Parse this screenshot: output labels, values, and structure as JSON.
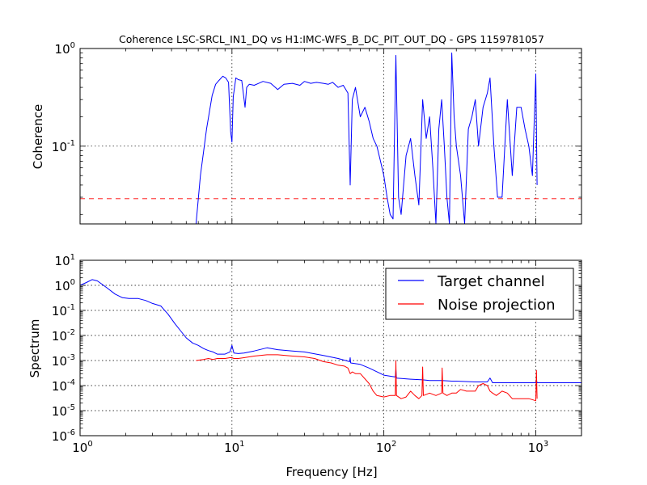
{
  "chart_data": [
    {
      "type": "line",
      "title": "Coherence LSC-SRCL_IN1_DQ vs H1:IMC-WFS_B_DC_PIT_OUT_DQ - GPS 1159781057",
      "ylabel": "Coherence",
      "xscale": "log",
      "yscale": "log",
      "xlim": [
        1,
        2000
      ],
      "ylim": [
        0.016,
        1
      ],
      "grid": true,
      "yticks": [
        {
          "value": 0.1,
          "label": "10",
          "exp": "-1"
        },
        {
          "value": 1,
          "label": "10",
          "exp": "0"
        }
      ],
      "threshold": {
        "value": 0.029,
        "color": "#ff0000"
      },
      "series": [
        {
          "color": "#0000ff",
          "x": [
            5.8,
            6.2,
            6.8,
            7.4,
            7.8,
            8.2,
            8.7,
            9.1,
            9.5,
            9.8,
            10.0,
            10.2,
            10.6,
            11.0,
            11.6,
            12.2,
            12.5,
            13.0,
            14.0,
            15.0,
            16.0,
            18.0,
            20.0,
            22.0,
            25.0,
            28.0,
            30.0,
            33.0,
            36.0,
            40.0,
            43.0,
            46.0,
            50.0,
            54.0,
            58.0,
            60.0,
            62.0,
            65.0,
            70.0,
            75.0,
            80.0,
            85.0,
            90.0,
            95.0,
            100,
            105,
            110,
            115,
            120,
            125,
            130,
            140,
            150,
            160,
            170,
            180,
            190,
            200,
            210,
            220,
            230,
            240,
            250,
            260,
            270,
            280,
            290,
            300,
            320,
            340,
            360,
            380,
            400,
            420,
            450,
            480,
            500,
            530,
            560,
            600,
            650,
            700,
            750,
            800,
            850,
            900,
            950,
            1000,
            1020
          ],
          "y": [
            0.016,
            0.05,
            0.15,
            0.33,
            0.43,
            0.47,
            0.52,
            0.5,
            0.45,
            0.14,
            0.11,
            0.32,
            0.5,
            0.48,
            0.47,
            0.25,
            0.4,
            0.43,
            0.42,
            0.44,
            0.46,
            0.44,
            0.38,
            0.43,
            0.44,
            0.42,
            0.46,
            0.44,
            0.45,
            0.44,
            0.43,
            0.45,
            0.4,
            0.42,
            0.35,
            0.04,
            0.3,
            0.4,
            0.2,
            0.25,
            0.18,
            0.12,
            0.1,
            0.07,
            0.05,
            0.03,
            0.02,
            0.018,
            0.85,
            0.03,
            0.02,
            0.08,
            0.12,
            0.05,
            0.025,
            0.3,
            0.12,
            0.2,
            0.06,
            0.016,
            0.15,
            0.3,
            0.1,
            0.03,
            0.016,
            0.9,
            0.2,
            0.1,
            0.05,
            0.016,
            0.15,
            0.2,
            0.3,
            0.1,
            0.25,
            0.35,
            0.5,
            0.1,
            0.03,
            0.03,
            0.3,
            0.05,
            0.25,
            0.25,
            0.15,
            0.1,
            0.05,
            0.55,
            0.04
          ]
        }
      ]
    },
    {
      "type": "line",
      "xlabel": "Frequency [Hz]",
      "ylabel": "Spectrum",
      "xscale": "log",
      "yscale": "log",
      "xlim": [
        1,
        2000
      ],
      "ylim": [
        1e-06,
        10
      ],
      "grid": true,
      "legend": "top-right",
      "xticks": [
        {
          "value": 1,
          "label": "10",
          "exp": "0"
        },
        {
          "value": 10,
          "label": "10",
          "exp": "1"
        },
        {
          "value": 100,
          "label": "10",
          "exp": "2"
        },
        {
          "value": 1000,
          "label": "10",
          "exp": "3"
        }
      ],
      "yticks": [
        {
          "value": 1e-06,
          "label": "10",
          "exp": "-6"
        },
        {
          "value": 1e-05,
          "label": "10",
          "exp": "-5"
        },
        {
          "value": 0.0001,
          "label": "10",
          "exp": "-4"
        },
        {
          "value": 0.001,
          "label": "10",
          "exp": "-3"
        },
        {
          "value": 0.01,
          "label": "10",
          "exp": "-2"
        },
        {
          "value": 0.1,
          "label": "10",
          "exp": "-1"
        },
        {
          "value": 1,
          "label": "10",
          "exp": "0"
        },
        {
          "value": 10,
          "label": "10",
          "exp": "1"
        }
      ],
      "series": [
        {
          "name": "Target channel",
          "color": "#0000ff",
          "x": [
            1.0,
            1.1,
            1.2,
            1.3,
            1.5,
            1.7,
            1.9,
            2.1,
            2.4,
            2.7,
            3.0,
            3.4,
            3.8,
            4.2,
            4.6,
            5.0,
            5.5,
            6.0,
            6.5,
            7.0,
            7.5,
            8.0,
            9.0,
            9.7,
            10.0,
            10.3,
            11.0,
            12.0,
            14.0,
            17.0,
            20.0,
            25.0,
            30.0,
            40.0,
            50.0,
            59.5,
            60.0,
            60.5,
            70.0,
            80.0,
            100,
            119,
            120,
            121,
            150,
            180,
            200,
            240,
            280,
            300,
            400,
            480,
            500,
            520,
            700,
            1000,
            1010,
            1020,
            2000
          ],
          "y": [
            1.0,
            1.3,
            1.7,
            1.5,
            0.8,
            0.45,
            0.32,
            0.3,
            0.3,
            0.25,
            0.19,
            0.15,
            0.07,
            0.03,
            0.015,
            0.008,
            0.005,
            0.004,
            0.003,
            0.0025,
            0.0022,
            0.0018,
            0.0018,
            0.0022,
            0.004,
            0.002,
            0.0019,
            0.002,
            0.0024,
            0.0032,
            0.0027,
            0.0024,
            0.0022,
            0.0016,
            0.0012,
            0.0009,
            0.0013,
            0.0008,
            0.0007,
            0.0005,
            0.00026,
            0.00022,
            0.00045,
            0.0002,
            0.00018,
            0.00017,
            0.00016,
            0.00016,
            0.00015,
            0.00015,
            0.00014,
            0.00014,
            0.0002,
            0.00013,
            0.00013,
            0.00013,
            0.00017,
            0.00013,
            0.00013
          ]
        },
        {
          "name": "Noise projection",
          "color": "#ff0000",
          "x": [
            5.8,
            6.5,
            7.0,
            7.5,
            8.0,
            9.0,
            9.7,
            10.0,
            10.3,
            11.0,
            12.0,
            14.0,
            17.0,
            20.0,
            25.0,
            30.0,
            35.0,
            40.0,
            45.0,
            50.0,
            55.0,
            58.0,
            60.0,
            62.0,
            65.0,
            70.0,
            80.0,
            85.0,
            90.0,
            100,
            110,
            119,
            120,
            121,
            130,
            140,
            150,
            160,
            170,
            178,
            180,
            182,
            200,
            220,
            240,
            242,
            245,
            260,
            280,
            300,
            320,
            350,
            400,
            420,
            450,
            480,
            500,
            520,
            550,
            600,
            650,
            700,
            800,
            900,
            1000,
            1010,
            1020
          ],
          "y": [
            0.001,
            0.0011,
            0.0012,
            0.0011,
            0.0012,
            0.0012,
            0.0013,
            0.0013,
            0.0012,
            0.0012,
            0.0013,
            0.0015,
            0.0017,
            0.0017,
            0.0015,
            0.0014,
            0.0012,
            0.0009,
            0.0008,
            0.00065,
            0.0006,
            0.0005,
            0.0003,
            0.00035,
            0.0003,
            0.0003,
            0.00012,
            6e-05,
            4e-05,
            3.5e-05,
            4e-05,
            4e-05,
            0.001,
            4e-05,
            3e-05,
            3.5e-05,
            6e-05,
            4e-05,
            3e-05,
            4e-05,
            0.00055,
            4e-05,
            5e-05,
            4e-05,
            5e-05,
            0.0005,
            5e-05,
            4e-05,
            5e-05,
            5e-05,
            7e-05,
            6e-05,
            6e-05,
            0.0001,
            0.00012,
            0.0001,
            6e-05,
            5e-05,
            4e-05,
            6e-05,
            5e-05,
            3e-05,
            3e-05,
            3e-05,
            2.5e-05,
            0.0004,
            3e-05
          ]
        }
      ]
    }
  ]
}
